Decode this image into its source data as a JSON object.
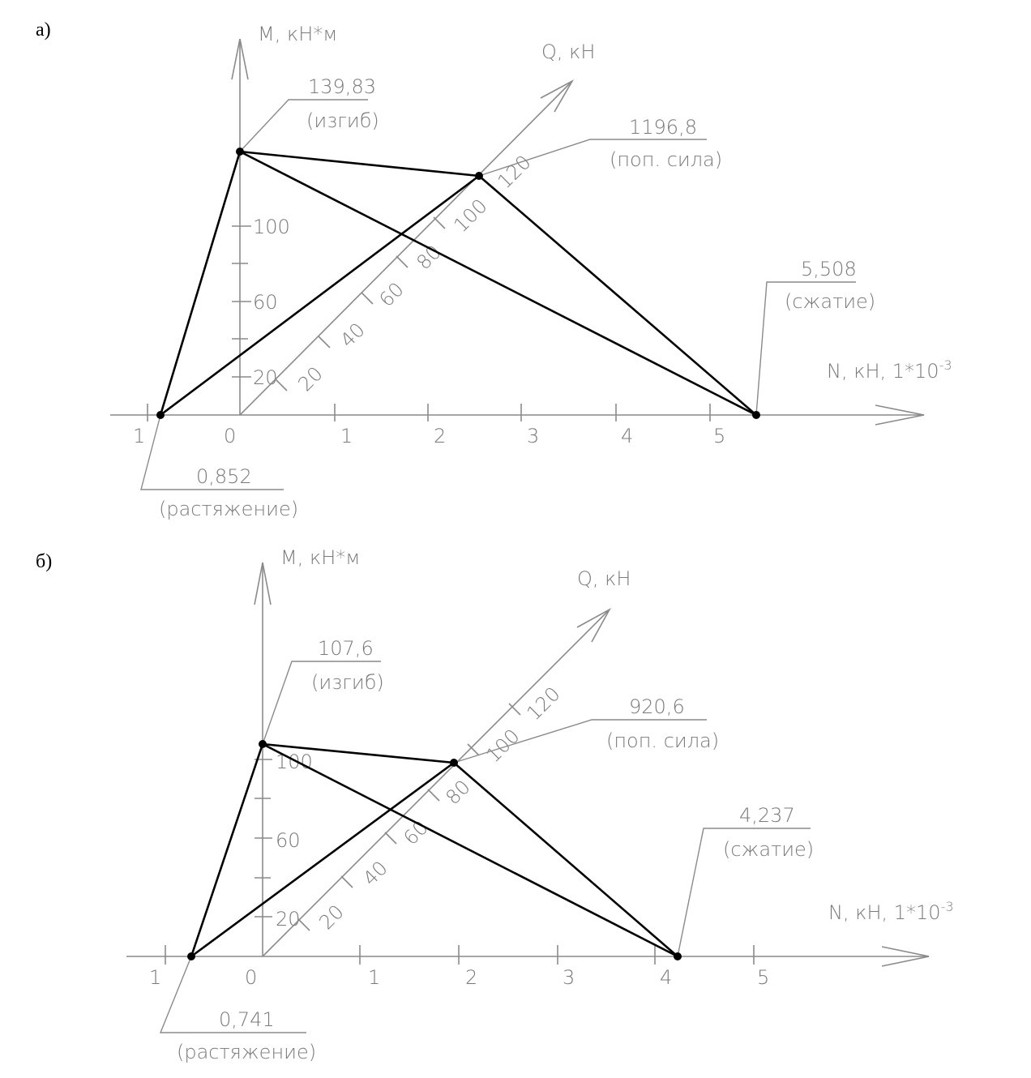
{
  "diagrams": [
    {
      "label": "а)",
      "m_axis_label": "М, кН*м",
      "q_axis_label": "Q, кН",
      "n_axis_label": "N, кН, 1*10",
      "n_axis_exponent": "-3",
      "n_ticks": [
        "1",
        "0",
        "1",
        "2",
        "3",
        "4",
        "5"
      ],
      "m_ticks": [
        "20",
        "60",
        "100"
      ],
      "q_ticks": [
        "20",
        "40",
        "60",
        "80",
        "100",
        "120"
      ],
      "bending": {
        "value": "139,83",
        "caption": "(изгиб)"
      },
      "shear": {
        "value": "1196,8",
        "caption": "(поп. сила)"
      },
      "compression": {
        "value": "5,508",
        "caption": "(сжатие)"
      },
      "tension": {
        "value": "0,852",
        "caption": "(растяжение)"
      }
    },
    {
      "label": "б)",
      "m_axis_label": "М, кН*м",
      "q_axis_label": "Q, кН",
      "n_axis_label": "N, кН, 1*10",
      "n_axis_exponent": "-3",
      "n_ticks": [
        "1",
        "0",
        "1",
        "2",
        "3",
        "4",
        "5"
      ],
      "m_ticks": [
        "20",
        "60",
        "100"
      ],
      "q_ticks": [
        "20",
        "40",
        "60",
        "80",
        "100",
        "120"
      ],
      "bending": {
        "value": "107,6",
        "caption": "(изгиб)"
      },
      "shear": {
        "value": "920,6",
        "caption": "(поп. сила)"
      },
      "compression": {
        "value": "4,237",
        "caption": "(сжатие)"
      },
      "tension": {
        "value": "0,741",
        "caption": "(растяжение)"
      }
    }
  ]
}
